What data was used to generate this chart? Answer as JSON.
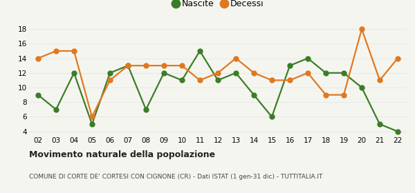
{
  "years": [
    "02",
    "03",
    "04",
    "05",
    "06",
    "07",
    "08",
    "09",
    "10",
    "11",
    "12",
    "13",
    "14",
    "15",
    "16",
    "17",
    "18",
    "19",
    "20",
    "21",
    "22"
  ],
  "nascite": [
    9,
    7,
    12,
    5,
    12,
    13,
    7,
    12,
    11,
    15,
    11,
    12,
    9,
    6,
    13,
    14,
    12,
    12,
    10,
    5,
    4
  ],
  "decessi": [
    14,
    15,
    15,
    6,
    11,
    13,
    13,
    13,
    13,
    11,
    12,
    14,
    12,
    11,
    11,
    12,
    9,
    9,
    18,
    11,
    14
  ],
  "nascite_color": "#3a7d27",
  "decessi_color": "#e07820",
  "background_color": "#f5f5f0",
  "plot_bg_color": "#f5f5f0",
  "grid_color": "#d8d8d8",
  "title": "Movimento naturale della popolazione",
  "subtitle": "COMUNE DI CORTE DE' CORTESI CON CIGNONE (CR) - Dati ISTAT (1 gen-31 dic) - TUTTITALIA.IT",
  "legend_nascite": "Nascite",
  "legend_decessi": "Decessi",
  "ylim_min": 3.5,
  "ylim_max": 18.8,
  "yticks": [
    4,
    6,
    8,
    10,
    12,
    14,
    16,
    18
  ],
  "marker_size": 5,
  "line_width": 1.6
}
